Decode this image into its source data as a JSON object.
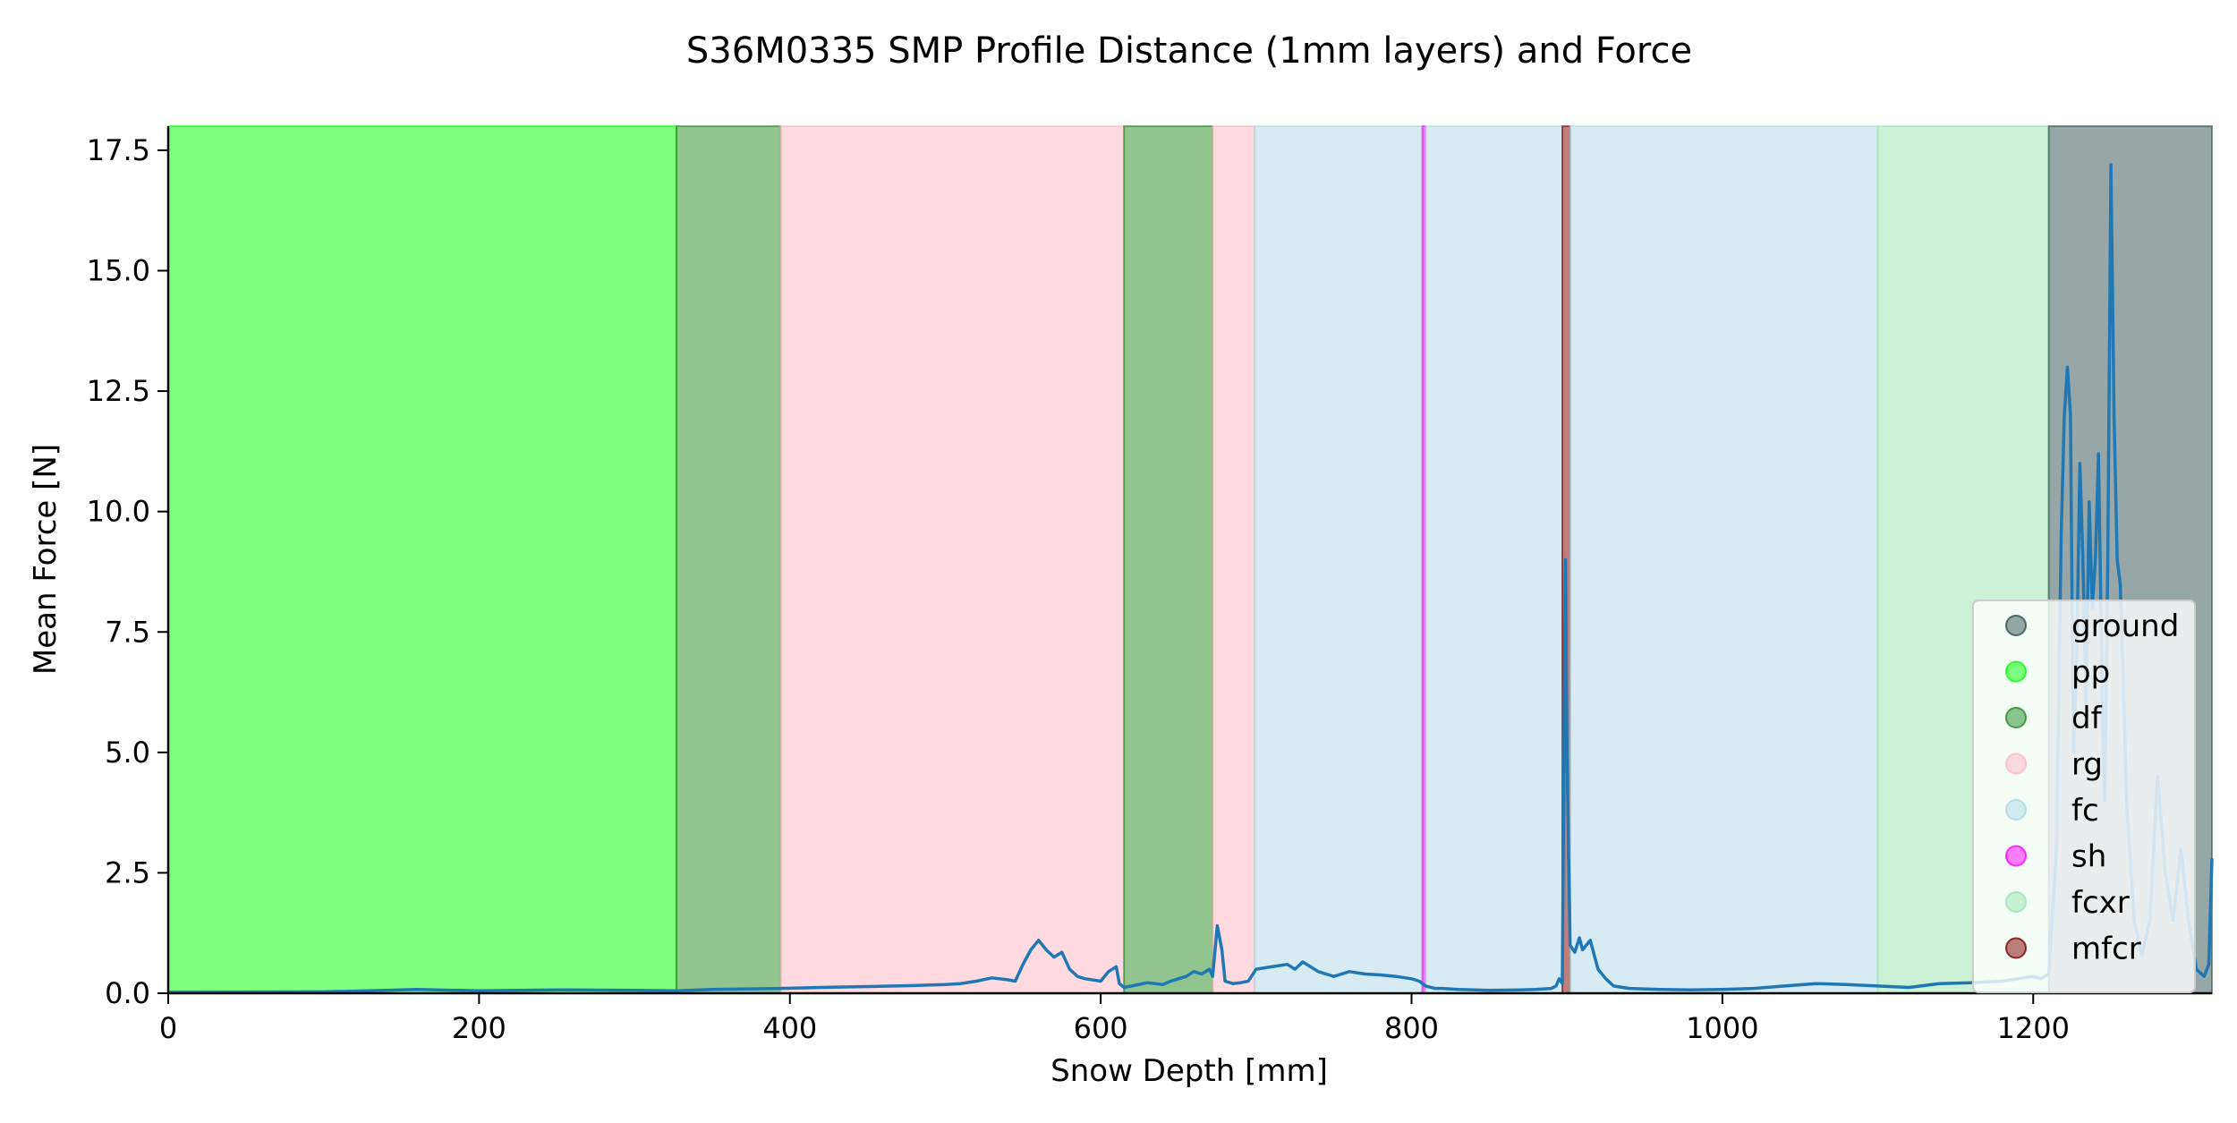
{
  "chart_data": {
    "type": "line",
    "title": "S36M0335 SMP Profile Distance (1mm layers) and Force",
    "xlabel": "Snow Depth [mm]",
    "ylabel": "Mean Force [N]",
    "xlim": [
      0,
      1315
    ],
    "ylim": [
      0,
      18
    ],
    "grid": false,
    "legend_placement": "lower-right",
    "x_ticks": [
      {
        "value": 0,
        "label": "0"
      },
      {
        "value": 200,
        "label": "200"
      },
      {
        "value": 400,
        "label": "400"
      },
      {
        "value": 600,
        "label": "600"
      },
      {
        "value": 800,
        "label": "800"
      },
      {
        "value": 1000,
        "label": "1000"
      },
      {
        "value": 1200,
        "label": "1200"
      }
    ],
    "y_ticks": [
      {
        "value": 0,
        "label": "0.0"
      },
      {
        "value": 2.5,
        "label": "2.5"
      },
      {
        "value": 5,
        "label": "5.0"
      },
      {
        "value": 7.5,
        "label": "7.5"
      },
      {
        "value": 10,
        "label": "10.0"
      },
      {
        "value": 12.5,
        "label": "12.5"
      },
      {
        "value": 15,
        "label": "15.0"
      },
      {
        "value": 17.5,
        "label": "17.5"
      }
    ],
    "legend": [
      {
        "label": "ground",
        "color": "#2f4f4f",
        "opacity": 0.5
      },
      {
        "label": "pp",
        "color": "#00ff00",
        "opacity": 0.5
      },
      {
        "label": "df",
        "color": "#228b22",
        "opacity": 0.5
      },
      {
        "label": "rg",
        "color": "#ffb6c1",
        "opacity": 0.5
      },
      {
        "label": "fc",
        "color": "#add8e6",
        "opacity": 0.5
      },
      {
        "label": "sh",
        "color": "#ff00ff",
        "opacity": 0.5
      },
      {
        "label": "fcxr",
        "color": "#98e6b0",
        "opacity": 0.5
      },
      {
        "label": "mfcr",
        "color": "#800000",
        "opacity": 0.5
      }
    ],
    "layers": [
      {
        "class": "pp",
        "start": 0,
        "end": 327
      },
      {
        "class": "df",
        "start": 327,
        "end": 394
      },
      {
        "class": "rg",
        "start": 394,
        "end": 615
      },
      {
        "class": "df",
        "start": 615,
        "end": 672
      },
      {
        "class": "rg",
        "start": 672,
        "end": 699
      },
      {
        "class": "fc",
        "start": 699,
        "end": 807
      },
      {
        "class": "sh",
        "start": 807,
        "end": 809
      },
      {
        "class": "fc",
        "start": 809,
        "end": 897
      },
      {
        "class": "mfcr",
        "start": 897,
        "end": 902
      },
      {
        "class": "fc",
        "start": 902,
        "end": 1100
      },
      {
        "class": "fcxr",
        "start": 1100,
        "end": 1210
      },
      {
        "class": "ground",
        "start": 1210,
        "end": 1315
      }
    ],
    "series": [
      {
        "color": "#1f77b4",
        "x": [
          0,
          100,
          140,
          160,
          200,
          250,
          300,
          327,
          350,
          394,
          420,
          450,
          480,
          500,
          510,
          520,
          530,
          540,
          545,
          550,
          555,
          560,
          565,
          570,
          575,
          580,
          585,
          590,
          600,
          605,
          610,
          612,
          615,
          620,
          630,
          640,
          645,
          650,
          655,
          660,
          665,
          670,
          672,
          675,
          678,
          680,
          685,
          690,
          695,
          700,
          710,
          720,
          725,
          730,
          740,
          750,
          760,
          770,
          780,
          790,
          800,
          805,
          807,
          809,
          815,
          820,
          830,
          850,
          870,
          880,
          890,
          893,
          895,
          897,
          899,
          900,
          902,
          905,
          908,
          910,
          915,
          920,
          925,
          930,
          940,
          960,
          980,
          1000,
          1020,
          1040,
          1060,
          1080,
          1100,
          1120,
          1140,
          1160,
          1180,
          1190,
          1200,
          1205,
          1210,
          1215,
          1218,
          1220,
          1222,
          1224,
          1225,
          1226,
          1228,
          1230,
          1232,
          1234,
          1236,
          1238,
          1240,
          1242,
          1244,
          1245,
          1246,
          1248,
          1250,
          1252,
          1254,
          1256,
          1258,
          1260,
          1262,
          1265,
          1270,
          1275,
          1280,
          1285,
          1290,
          1295,
          1300,
          1305,
          1310,
          1313,
          1315
        ],
        "y": [
          0.02,
          0.03,
          0.06,
          0.08,
          0.05,
          0.07,
          0.06,
          0.05,
          0.08,
          0.1,
          0.12,
          0.14,
          0.16,
          0.18,
          0.2,
          0.25,
          0.32,
          0.28,
          0.25,
          0.6,
          0.9,
          1.1,
          0.9,
          0.75,
          0.85,
          0.5,
          0.35,
          0.3,
          0.25,
          0.45,
          0.55,
          0.2,
          0.12,
          0.15,
          0.22,
          0.18,
          0.25,
          0.3,
          0.35,
          0.45,
          0.4,
          0.5,
          0.35,
          1.4,
          0.9,
          0.25,
          0.2,
          0.22,
          0.25,
          0.5,
          0.55,
          0.6,
          0.5,
          0.65,
          0.45,
          0.35,
          0.45,
          0.4,
          0.38,
          0.35,
          0.3,
          0.25,
          0.2,
          0.15,
          0.1,
          0.1,
          0.08,
          0.06,
          0.07,
          0.08,
          0.1,
          0.15,
          0.3,
          0.2,
          9.0,
          5.0,
          1.0,
          0.85,
          1.15,
          0.9,
          1.1,
          0.5,
          0.3,
          0.15,
          0.1,
          0.08,
          0.07,
          0.08,
          0.1,
          0.15,
          0.2,
          0.18,
          0.15,
          0.12,
          0.2,
          0.22,
          0.25,
          0.3,
          0.35,
          0.3,
          0.4,
          3.0,
          9.5,
          12.0,
          13.0,
          12.0,
          8.0,
          5.0,
          7.0,
          11.0,
          9.0,
          6.0,
          10.2,
          8.0,
          9.0,
          11.2,
          7.0,
          5.0,
          4.0,
          9.0,
          17.2,
          12.0,
          9.0,
          8.5,
          6.5,
          4.0,
          3.0,
          1.5,
          0.8,
          1.5,
          4.5,
          2.5,
          1.5,
          3.0,
          1.5,
          0.5,
          0.35,
          0.6,
          2.8
        ]
      }
    ]
  }
}
